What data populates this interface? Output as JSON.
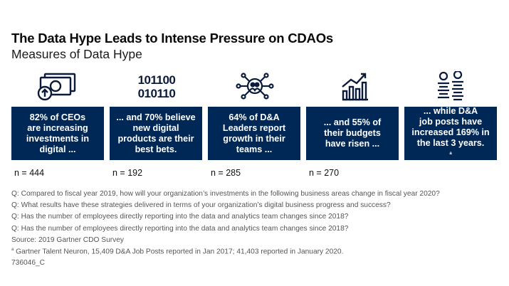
{
  "header": {
    "title": "The Data Hype Leads to Intense Pressure on CDAOs",
    "subtitle": "Measures of Data Hype"
  },
  "cards": [
    {
      "lines": [
        "82% of CEOs",
        "are increasing",
        "investments in",
        "digital ..."
      ],
      "n": "n = 444",
      "icon": "money-investment-icon"
    },
    {
      "lines": [
        "... and 70% believe",
        "new digital",
        "products are their",
        "best bets."
      ],
      "n": "n = 192",
      "icon": "binary-code-icon"
    },
    {
      "lines": [
        "64% of D&A",
        "Leaders report",
        "growth in their",
        "teams ..."
      ],
      "n": "n = 285",
      "icon": "team-network-icon"
    },
    {
      "lines": [
        "... and 55% of",
        "their budgets",
        "have risen ..."
      ],
      "n": "n = 270",
      "icon": "growth-chart-icon"
    },
    {
      "lines": [
        "... while D&A",
        "job posts have",
        "increased 169% in",
        "the last 3 years."
      ],
      "footnote_mark": "a",
      "n": "",
      "icon": "job-candidates-icon"
    }
  ],
  "footer": {
    "questions": [
      "Q: Compared to fiscal year 2019, how will your organization’s investments in the following business areas change in fiscal year 2020?",
      "Q: What results have these strategies delivered in terms of your organization’s digital business progress and success?",
      "Q: Has the number of employees directly reporting into the data and analytics team changes since 2018?",
      "Q: Has the number of employees directly reporting into the data and analytics team changes since 2018?"
    ],
    "source": "Source: 2019 Gartner CDO Survey",
    "footnote_mark": "a",
    "footnote": " Gartner Talent Neuron, 15,409 D&A Job Posts reported in Jan 2017; 41,403 reported in January 2020.",
    "id": "736046_C"
  }
}
